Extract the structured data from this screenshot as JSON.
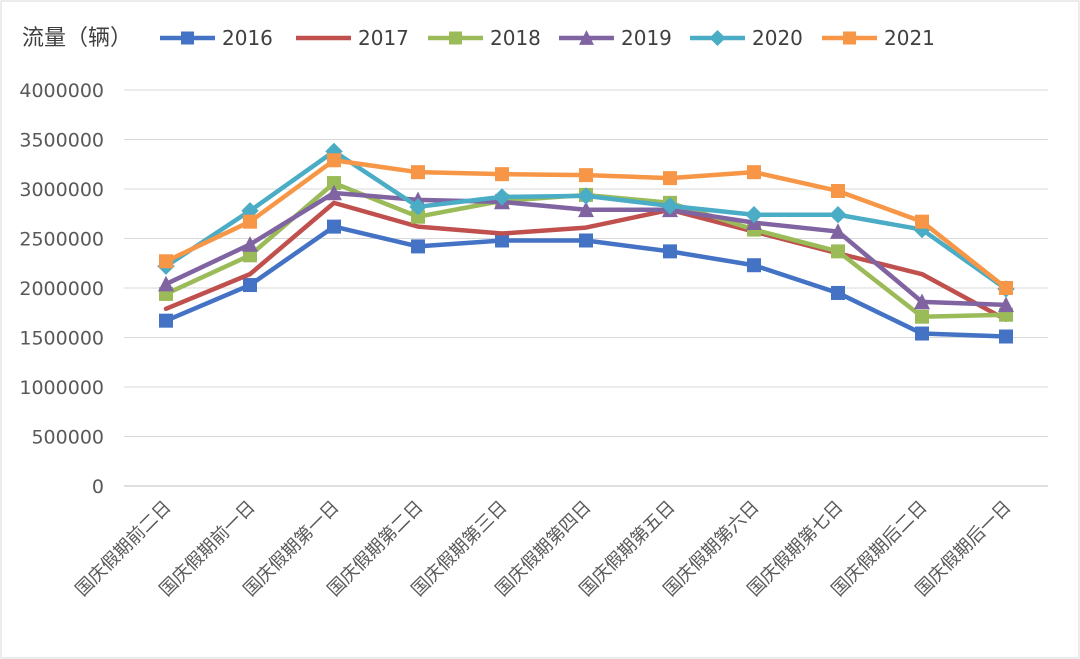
{
  "chart_data": {
    "type": "line",
    "title": "",
    "ylabel": "流量（辆）",
    "xlabel": "",
    "ylim": [
      0,
      4000000
    ],
    "yticks": [
      0,
      500000,
      1000000,
      1500000,
      2000000,
      2500000,
      3000000,
      3500000,
      4000000
    ],
    "grid": true,
    "legend_position": "top",
    "categories": [
      "国庆假期前二日",
      "国庆假期前一日",
      "国庆假期第一日",
      "国庆假期第二日",
      "国庆假期第三日",
      "国庆假期第四日",
      "国庆假期第五日",
      "国庆假期第六日",
      "国庆假期第七日",
      "国庆假期后二日",
      "国庆假期后一日"
    ],
    "series": [
      {
        "name": "2016",
        "color": "#4472C4",
        "marker": "square",
        "values": [
          1670000,
          2030000,
          2620000,
          2420000,
          2480000,
          2480000,
          2370000,
          2230000,
          1950000,
          1540000,
          1510000
        ]
      },
      {
        "name": "2017",
        "color": "#C0504D",
        "marker": "none",
        "values": [
          1790000,
          2140000,
          2860000,
          2620000,
          2550000,
          2610000,
          2790000,
          2570000,
          2350000,
          2140000,
          1680000
        ]
      },
      {
        "name": "2018",
        "color": "#9BBB59",
        "marker": "square",
        "values": [
          1940000,
          2330000,
          3060000,
          2720000,
          2880000,
          2940000,
          2860000,
          2590000,
          2370000,
          1710000,
          1730000
        ]
      },
      {
        "name": "2019",
        "color": "#8064A2",
        "marker": "triangle",
        "values": [
          2040000,
          2440000,
          2960000,
          2890000,
          2870000,
          2790000,
          2790000,
          2660000,
          2570000,
          1860000,
          1830000
        ]
      },
      {
        "name": "2020",
        "color": "#4BACC6",
        "marker": "diamond",
        "values": [
          2220000,
          2780000,
          3380000,
          2820000,
          2920000,
          2930000,
          2830000,
          2740000,
          2740000,
          2590000,
          1990000
        ]
      },
      {
        "name": "2021",
        "color": "#F79646",
        "marker": "square",
        "values": [
          2270000,
          2670000,
          3290000,
          3170000,
          3150000,
          3140000,
          3110000,
          3170000,
          2980000,
          2670000,
          2000000
        ]
      }
    ]
  }
}
